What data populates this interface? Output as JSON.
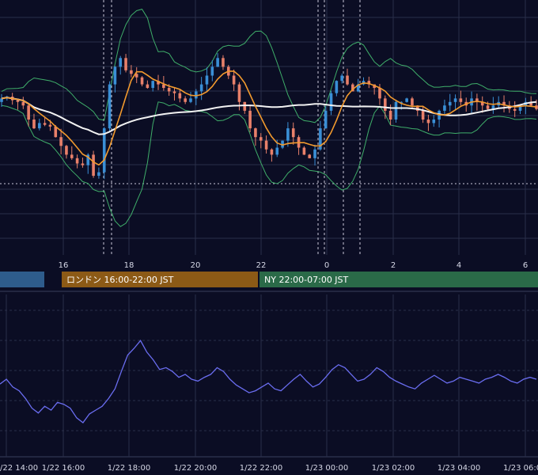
{
  "colors": {
    "background": "#0b0d24",
    "grid": "#2a2e4a",
    "up_candle": "#3a8fd6",
    "down_candle": "#e8806a",
    "ma_short": "#f29a2e",
    "ma_long": "#f2f2f2",
    "bollinger": "#3fae6a",
    "oscillator": "#6a6df0",
    "session_tokyo": "#2e5c8c",
    "session_london": "#8c5a16",
    "session_ny": "#2a6a48"
  },
  "chart_data": [
    {
      "type": "candlestick",
      "xlabel": "",
      "ylabel": "",
      "grid": true,
      "x_ticks": [
        "16",
        "18",
        "20",
        "22",
        "0",
        "2",
        "4",
        "6"
      ],
      "overlays": [
        "ma_short",
        "ma_long",
        "bollinger_upper",
        "bollinger_lower"
      ],
      "session_bands": [
        {
          "label": "",
          "color": "session_tokyo"
        },
        {
          "label": "ロンドン 16:00-22:00 JST",
          "color": "session_london"
        },
        {
          "label": "NY 22:00-07:00 JST",
          "color": "session_ny"
        }
      ],
      "close_series": [
        0.62,
        0.63,
        0.61,
        0.6,
        0.58,
        0.5,
        0.45,
        0.48,
        0.47,
        0.46,
        0.4,
        0.35,
        0.3,
        0.28,
        0.25,
        0.24,
        0.3,
        0.18,
        0.2,
        0.45,
        0.7,
        0.8,
        0.85,
        0.78,
        0.76,
        0.74,
        0.7,
        0.68,
        0.72,
        0.7,
        0.68,
        0.66,
        0.65,
        0.62,
        0.6,
        0.62,
        0.66,
        0.7,
        0.75,
        0.8,
        0.85,
        0.8,
        0.75,
        0.7,
        0.6,
        0.55,
        0.45,
        0.4,
        0.38,
        0.33,
        0.3,
        0.34,
        0.38,
        0.45,
        0.4,
        0.34,
        0.3,
        0.28,
        0.33,
        0.45,
        0.55,
        0.65,
        0.72,
        0.75,
        0.7,
        0.66,
        0.7,
        0.72,
        0.7,
        0.68,
        0.62,
        0.55,
        0.5,
        0.6,
        0.6,
        0.62,
        0.58,
        0.55,
        0.5,
        0.48,
        0.5,
        0.55,
        0.58,
        0.6,
        0.62,
        0.6,
        0.58,
        0.62,
        0.6,
        0.58,
        0.56,
        0.58,
        0.6,
        0.58,
        0.56,
        0.55,
        0.58,
        0.6,
        0.58,
        0.56
      ]
    },
    {
      "type": "line",
      "xlabel": "",
      "ylabel": "",
      "grid": true,
      "x_ticks": [
        "/22 14:00",
        "1/22 16:00",
        "1/22 18:00",
        "1/22 20:00",
        "1/22 22:00",
        "1/23 00:00",
        "1/23 02:00",
        "1/23 04:00",
        "1/23 06:0"
      ],
      "values": [
        0.45,
        0.5,
        0.42,
        0.38,
        0.3,
        0.2,
        0.15,
        0.22,
        0.18,
        0.26,
        0.24,
        0.2,
        0.1,
        0.05,
        0.14,
        0.18,
        0.22,
        0.3,
        0.4,
        0.58,
        0.75,
        0.82,
        0.9,
        0.78,
        0.7,
        0.6,
        0.62,
        0.58,
        0.52,
        0.55,
        0.5,
        0.48,
        0.52,
        0.55,
        0.62,
        0.58,
        0.5,
        0.44,
        0.4,
        0.36,
        0.38,
        0.42,
        0.46,
        0.4,
        0.38,
        0.44,
        0.5,
        0.55,
        0.48,
        0.42,
        0.45,
        0.52,
        0.6,
        0.65,
        0.62,
        0.55,
        0.48,
        0.5,
        0.55,
        0.62,
        0.58,
        0.52,
        0.48,
        0.45,
        0.42,
        0.4,
        0.46,
        0.5,
        0.54,
        0.5,
        0.46,
        0.48,
        0.52,
        0.5,
        0.48,
        0.46,
        0.5,
        0.52,
        0.55,
        0.52,
        0.48,
        0.46,
        0.5,
        0.52,
        0.5
      ]
    }
  ]
}
